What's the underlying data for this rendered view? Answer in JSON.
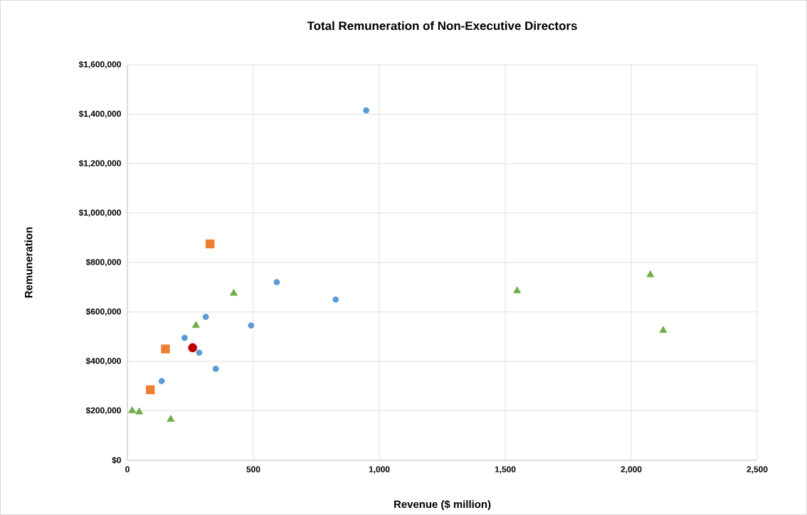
{
  "chart_data": {
    "type": "scatter",
    "title": "Total Remuneration of Non-Executive Directors",
    "xlabel": "Revenue ($ million)",
    "ylabel": "Remuneration",
    "xlim": [
      0,
      2500
    ],
    "ylim": [
      0,
      1600000
    ],
    "xticks": [
      0,
      500,
      {
        "value": 1000,
        "label": "1,000"
      },
      {
        "value": 1500,
        "label": "1,500"
      },
      {
        "value": 2000,
        "label": "2,000"
      },
      {
        "value": 2500,
        "label": "2,500"
      }
    ],
    "yticks": [
      {
        "value": 0,
        "label": "$0"
      },
      {
        "value": 200000,
        "label": "$200,000"
      },
      {
        "value": 400000,
        "label": "$400,000"
      },
      {
        "value": 600000,
        "label": "$600,000"
      },
      {
        "value": 800000,
        "label": "$800,000"
      },
      {
        "value": 1000000,
        "label": "$1,000,000"
      },
      {
        "value": 1200000,
        "label": "$1,200,000"
      },
      {
        "value": 1400000,
        "label": "$1,400,000"
      },
      {
        "value": 1600000,
        "label": "$1,600,000"
      }
    ],
    "grid": true,
    "series": [
      {
        "color": "#5b9bd5",
        "marker": "circle",
        "x": [
          948,
          593,
          827,
          311,
          491,
          227,
          285,
          351,
          136
        ],
        "values": [
          1415000,
          720000,
          650000,
          580000,
          545000,
          495000,
          435000,
          370000,
          320000
        ]
      },
      {
        "color": "#ed7d31",
        "marker": "square",
        "x": [
          328,
          151,
          91
        ],
        "values": [
          875000,
          450000,
          285000
        ]
      },
      {
        "color": "#70ad47",
        "marker": "triangle",
        "x": [
          422,
          272,
          19,
          47,
          172,
          1547,
          2076,
          2127
        ],
        "values": [
          675000,
          545000,
          200000,
          195000,
          165000,
          685000,
          750000,
          525000
        ]
      },
      {
        "color": "#c00000",
        "marker": "circle",
        "x": [
          259
        ],
        "values": [
          455000
        ]
      }
    ]
  }
}
